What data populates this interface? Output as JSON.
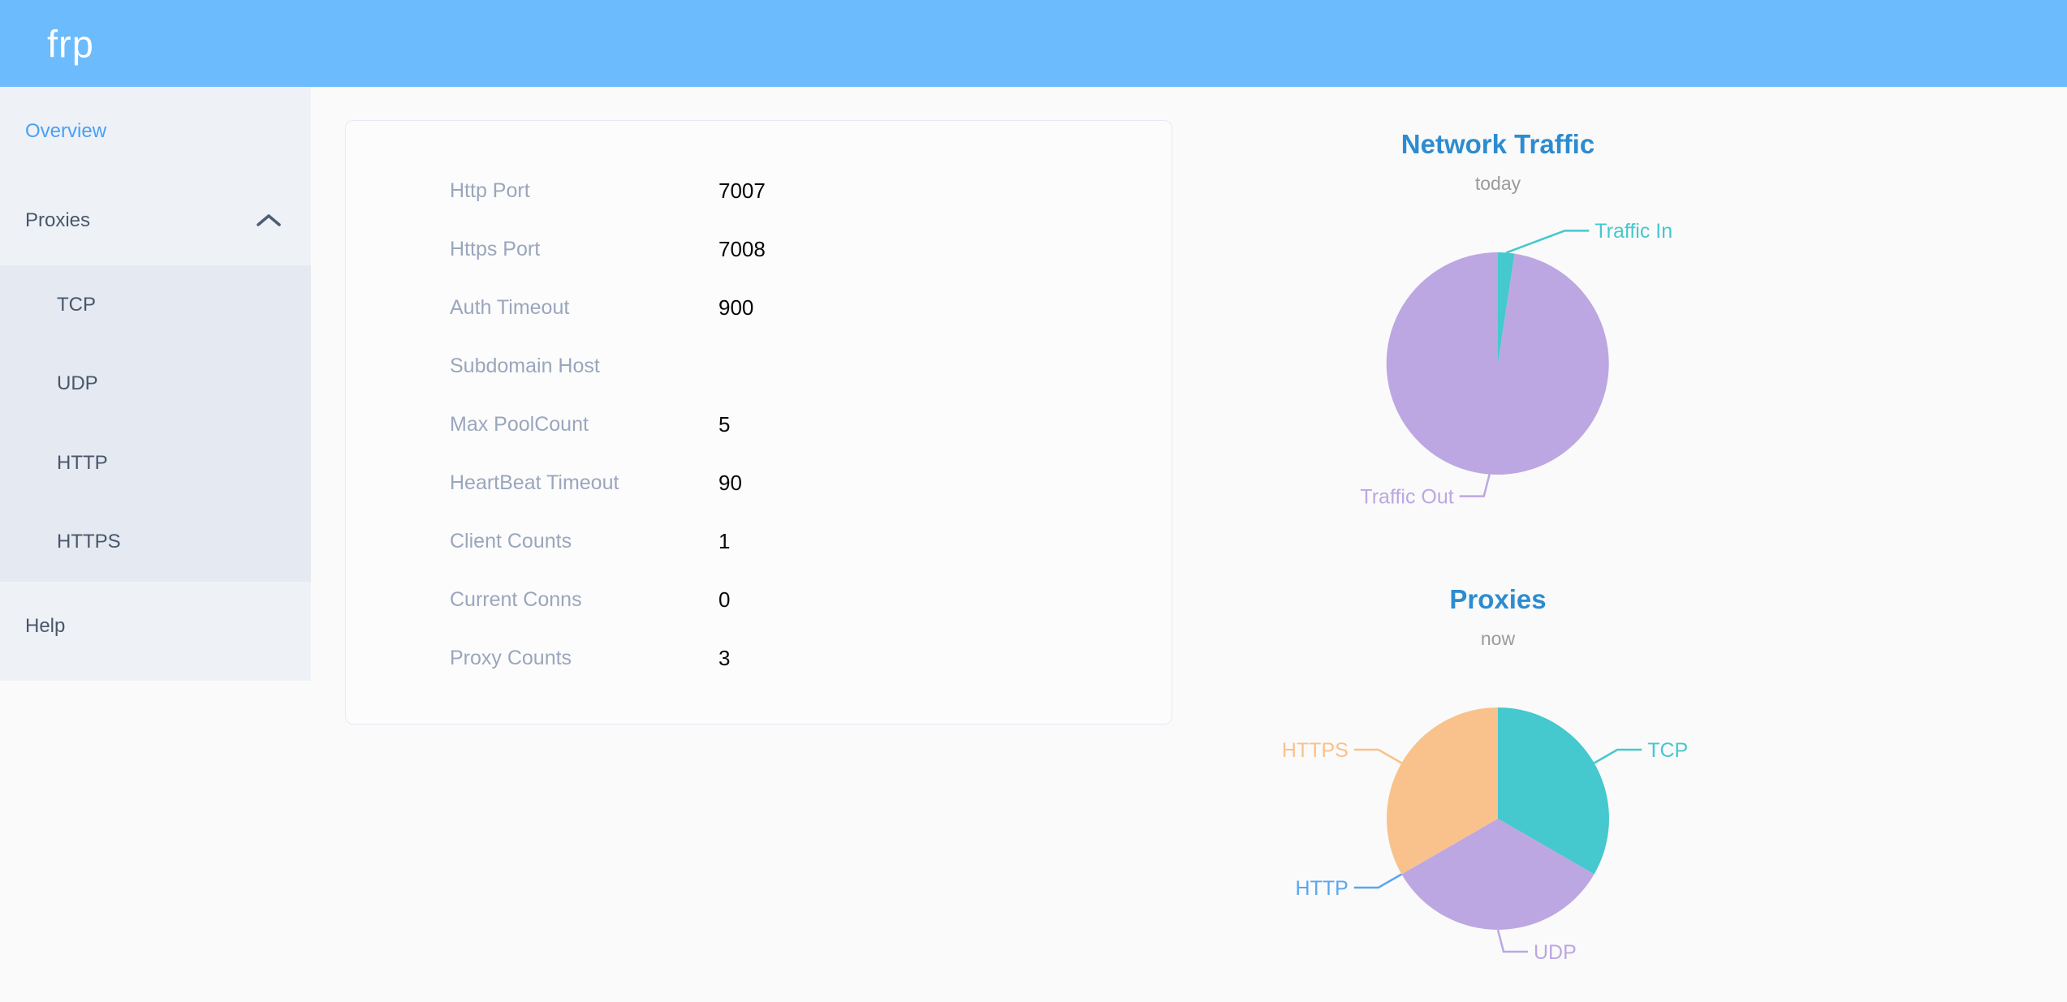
{
  "header": {
    "logo": "frp"
  },
  "colors": {
    "header_bg": "#6cbbfc",
    "sidebar_bg": "#eef1f6",
    "submenu_bg": "#e5e9f1",
    "sidebar_text": "#48576a",
    "active_link": "#4aa0f5",
    "chart_title": "#2d8cd0",
    "info_label": "#9aa6bc",
    "teal": "#45c8ce",
    "purple": "#bca7e2",
    "blue": "#5ba6ee",
    "orange": "#f9c28c"
  },
  "sidebar": {
    "items": [
      {
        "label": "Overview",
        "active": true
      },
      {
        "label": "Proxies",
        "active": false,
        "expanded": true,
        "children": [
          {
            "label": "TCP"
          },
          {
            "label": "UDP"
          },
          {
            "label": "HTTP"
          },
          {
            "label": "HTTPS"
          }
        ]
      },
      {
        "label": "Help",
        "active": false
      }
    ]
  },
  "server_info": {
    "rows": [
      {
        "label": "Http Port",
        "value": "7007"
      },
      {
        "label": "Https Port",
        "value": "7008"
      },
      {
        "label": "Auth Timeout",
        "value": "900"
      },
      {
        "label": "Subdomain Host",
        "value": ""
      },
      {
        "label": "Max PoolCount",
        "value": "5"
      },
      {
        "label": "HeartBeat Timeout",
        "value": "90"
      },
      {
        "label": "Client Counts",
        "value": "1"
      },
      {
        "label": "Current Conns",
        "value": "0"
      },
      {
        "label": "Proxy Counts",
        "value": "3"
      }
    ]
  },
  "chart_data": [
    {
      "type": "pie",
      "title": "Network Traffic",
      "subtitle": "today",
      "value_unit": "percent_of_total_estimated",
      "series": [
        {
          "name": "Traffic In",
          "value": 2.4,
          "color": "#45c8ce"
        },
        {
          "name": "Traffic Out",
          "value": 97.6,
          "color": "#bca7e2"
        }
      ],
      "layout": {
        "label_position": "outside",
        "legend": "none",
        "start_angle_deg": 0,
        "clockwise": true,
        "radius_px": 137
      }
    },
    {
      "type": "pie",
      "title": "Proxies",
      "subtitle": "now",
      "value_unit": "proxy_count",
      "series": [
        {
          "name": "TCP",
          "value": 1,
          "color": "#45c8ce"
        },
        {
          "name": "UDP",
          "value": 1,
          "color": "#bca7e2"
        },
        {
          "name": "HTTP",
          "value": 0,
          "color": "#5ba6ee"
        },
        {
          "name": "HTTPS",
          "value": 1,
          "color": "#f9c28c"
        }
      ],
      "layout": {
        "label_position": "outside",
        "legend": "none",
        "start_angle_deg": 0,
        "clockwise": true,
        "radius_px": 137
      }
    }
  ]
}
